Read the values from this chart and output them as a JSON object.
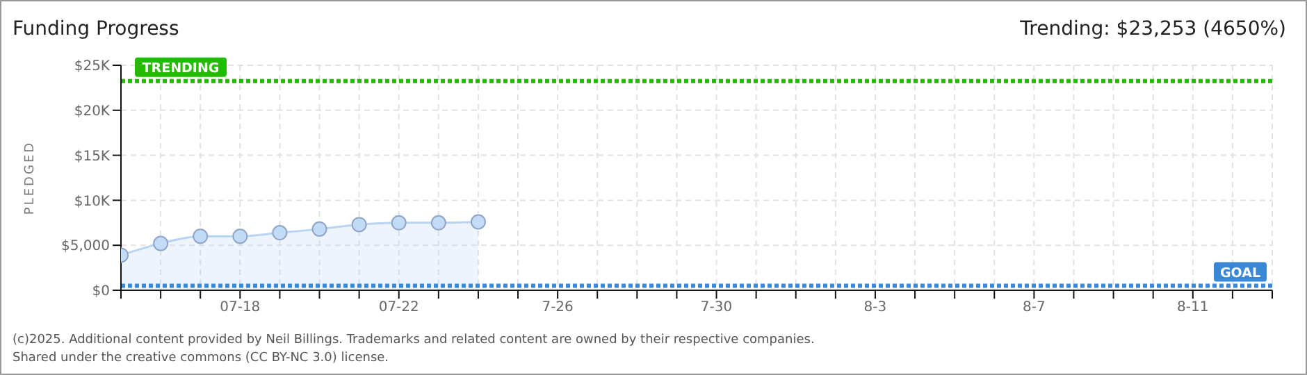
{
  "chart_data": {
    "type": "area",
    "title": "Funding Progress",
    "subtitle": "Trending: $23,253 (4650%)",
    "ylabel": "PLEDGED",
    "x": [
      "2025-07-15",
      "2025-07-16",
      "2025-07-17",
      "2025-07-18",
      "2025-07-19",
      "2025-07-20",
      "2025-07-21",
      "2025-07-22",
      "2025-07-23",
      "2025-07-24"
    ],
    "series": [
      {
        "color": "#b9d4f2",
        "values": [
          3900,
          5200,
          6000,
          6000,
          6400,
          6800,
          7300,
          7500,
          7500,
          7600
        ]
      }
    ],
    "xlim": [
      "2025-07-15",
      "2025-08-13"
    ],
    "xticks": [
      {
        "value": "2025-07-15",
        "label": null
      },
      {
        "value": "2025-07-16",
        "label": null
      },
      {
        "value": "2025-07-17",
        "label": null
      },
      {
        "value": "2025-07-18",
        "label": "07-18"
      },
      {
        "value": "2025-07-19",
        "label": null
      },
      {
        "value": "2025-07-20",
        "label": null
      },
      {
        "value": "2025-07-21",
        "label": null
      },
      {
        "value": "2025-07-22",
        "label": "07-22"
      },
      {
        "value": "2025-07-23",
        "label": null
      },
      {
        "value": "2025-07-24",
        "label": null
      },
      {
        "value": "2025-07-25",
        "label": null
      },
      {
        "value": "2025-07-26",
        "label": "7-26"
      },
      {
        "value": "2025-07-27",
        "label": null
      },
      {
        "value": "2025-07-28",
        "label": null
      },
      {
        "value": "2025-07-29",
        "label": null
      },
      {
        "value": "2025-07-30",
        "label": "7-30"
      },
      {
        "value": "2025-07-31",
        "label": null
      },
      {
        "value": "2025-08-01",
        "label": null
      },
      {
        "value": "2025-08-02",
        "label": null
      },
      {
        "value": "2025-08-03",
        "label": "8-3"
      },
      {
        "value": "2025-08-04",
        "label": null
      },
      {
        "value": "2025-08-05",
        "label": null
      },
      {
        "value": "2025-08-06",
        "label": null
      },
      {
        "value": "2025-08-07",
        "label": "8-7"
      },
      {
        "value": "2025-08-08",
        "label": null
      },
      {
        "value": "2025-08-09",
        "label": null
      },
      {
        "value": "2025-08-10",
        "label": null
      },
      {
        "value": "2025-08-11",
        "label": "8-11"
      },
      {
        "value": "2025-08-12",
        "label": null
      },
      {
        "value": "2025-08-13",
        "label": null
      }
    ],
    "ylim": [
      0,
      25000
    ],
    "yticks": [
      {
        "value": 0,
        "label": "$0"
      },
      {
        "value": 5000,
        "label": "$5,000"
      },
      {
        "value": 10000,
        "label": "$10K"
      },
      {
        "value": 15000,
        "label": "$15K"
      },
      {
        "value": 20000,
        "label": "$20K"
      },
      {
        "value": 25000,
        "label": "$25K"
      }
    ],
    "ref_lines": [
      {
        "axis": "y",
        "value": 23253,
        "label": "TRENDING",
        "color": "#22bb00",
        "line_style": "dotted"
      },
      {
        "axis": "y",
        "value": 500,
        "label": "GOAL",
        "color": "#3a87d6",
        "line_style": "dotted"
      }
    ],
    "grid": true,
    "marker": "circle",
    "legend": false,
    "annotations": [
      "(c)2025. Additional content provided by Neil Billings. Trademarks and related content are owned by their respective companies.",
      "Shared under the creative commons (CC BY-NC 3.0) license."
    ]
  }
}
